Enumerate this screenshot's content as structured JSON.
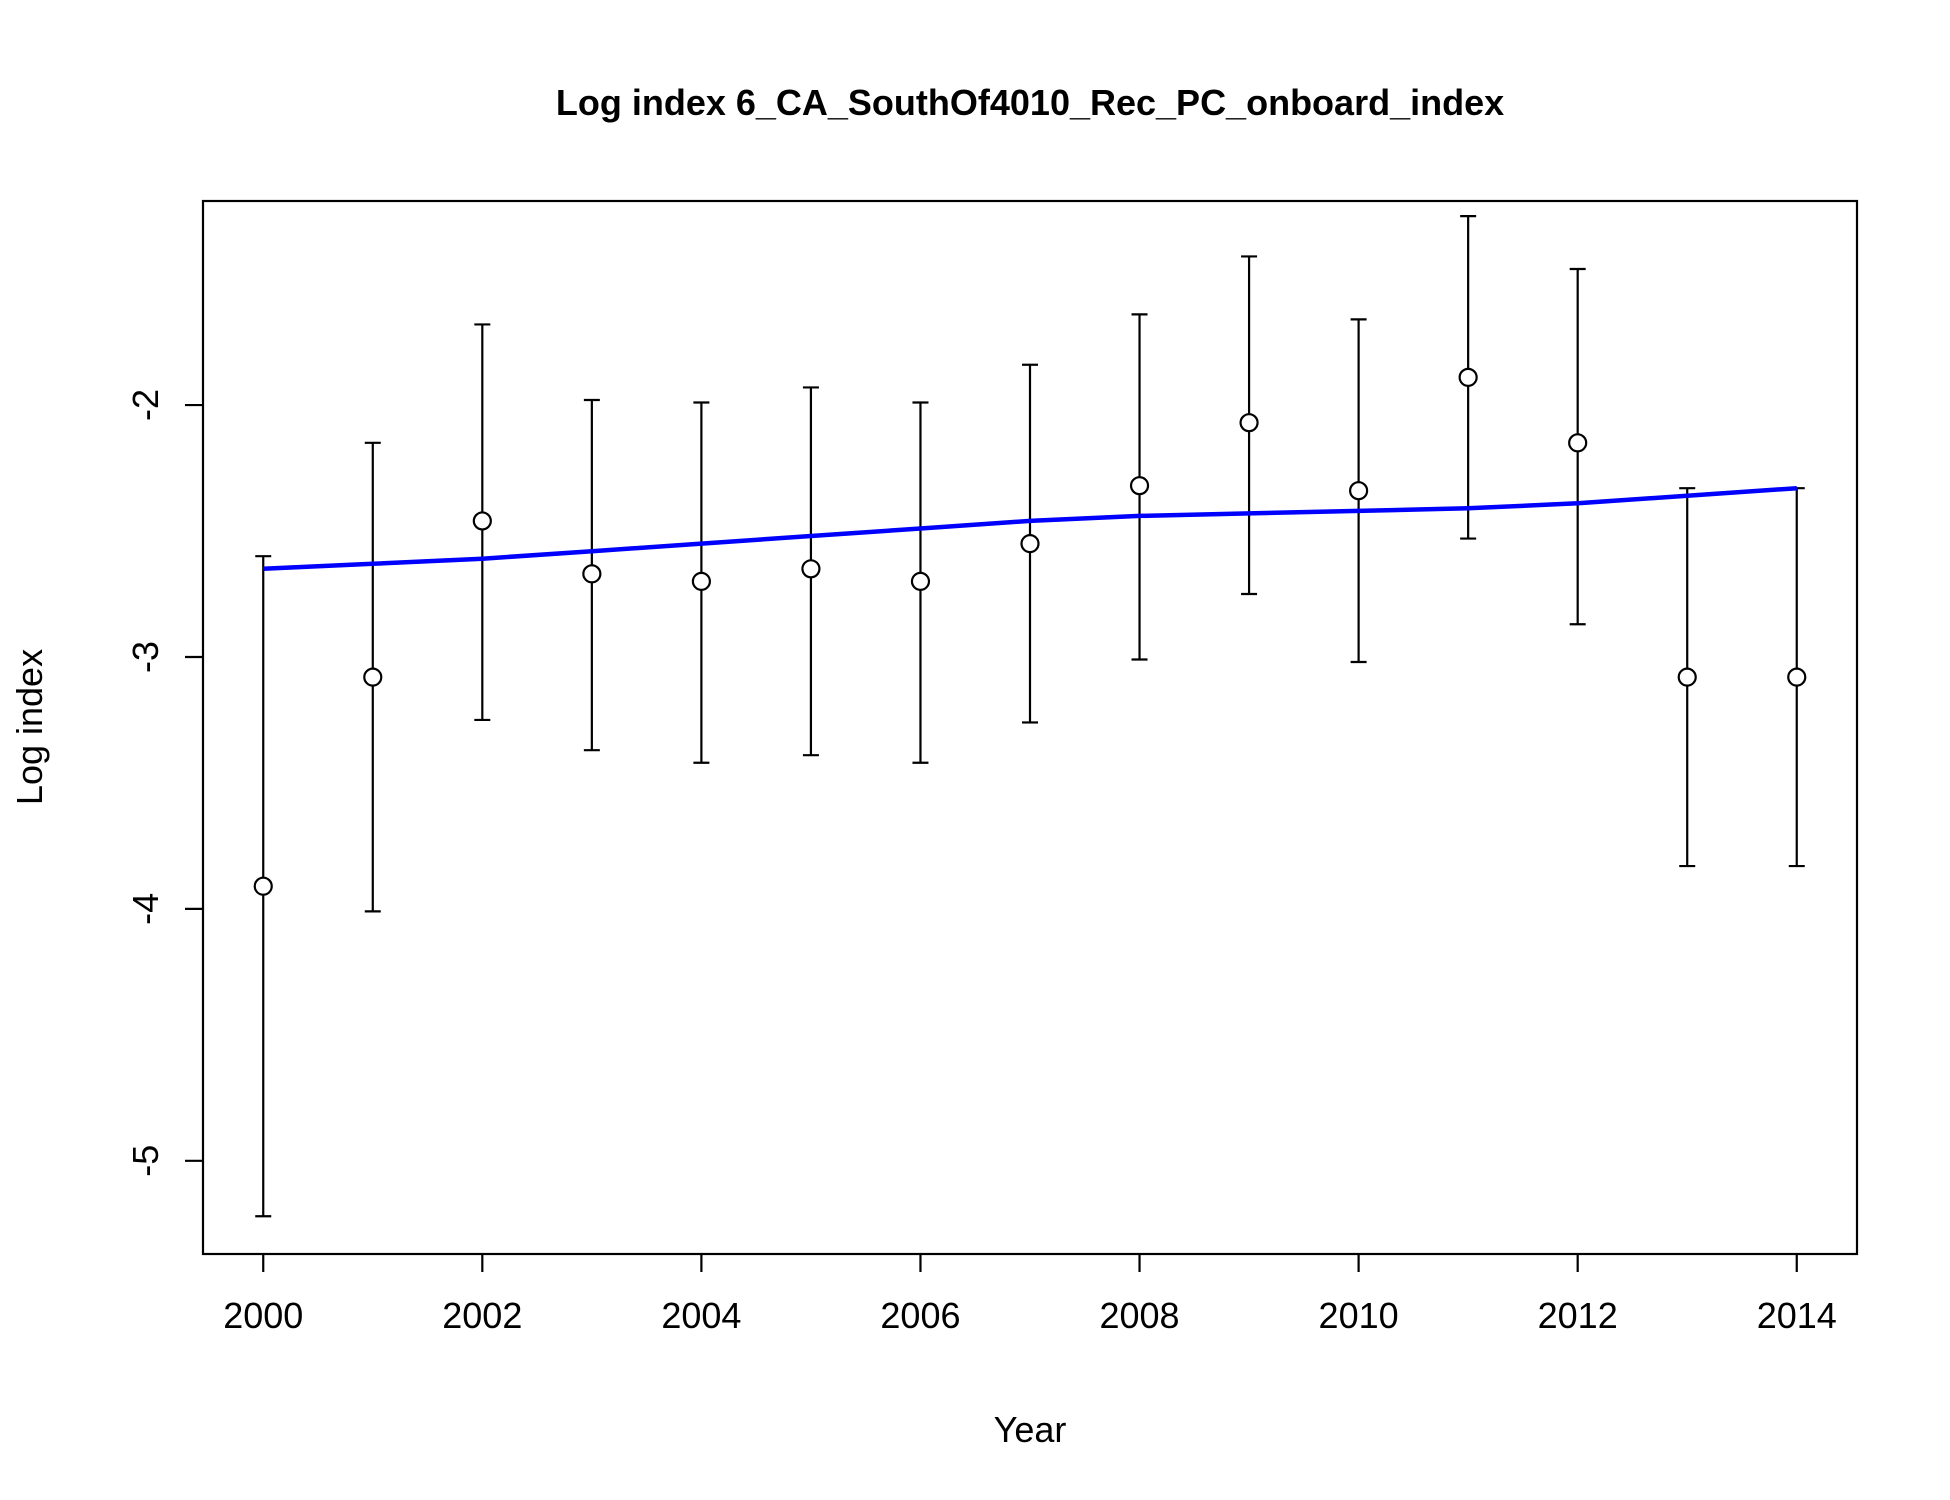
{
  "chart_data": {
    "type": "scatter",
    "title": "Log index 6_CA_SouthOf4010_Rec_PC_onboard_index",
    "xlabel": "Year",
    "ylabel": "Log index",
    "xlim": [
      1999.45,
      2014.55
    ],
    "ylim": [
      -5.37,
      -1.19
    ],
    "xticks": [
      2000,
      2002,
      2004,
      2006,
      2008,
      2010,
      2012,
      2014
    ],
    "xtick_labels": [
      "2000",
      "2002",
      "2004",
      "2006",
      "2008",
      "2010",
      "2012",
      "2014"
    ],
    "yticks": [
      -5,
      -4,
      -3,
      -2
    ],
    "ytick_labels": [
      "-5",
      "-4",
      "-3",
      "-2"
    ],
    "grid": false,
    "series": [
      {
        "type": "scatter-errorbar",
        "color": "#000000",
        "x": [
          2000,
          2001,
          2002,
          2003,
          2004,
          2005,
          2006,
          2007,
          2008,
          2009,
          2010,
          2011,
          2012,
          2013,
          2014
        ],
        "y": [
          -3.91,
          -3.08,
          -2.46,
          -2.67,
          -2.7,
          -2.65,
          -2.7,
          -2.55,
          -2.32,
          -2.07,
          -2.34,
          -1.89,
          -2.15,
          -3.08,
          -3.08
        ],
        "lower": [
          -5.22,
          -4.01,
          -3.25,
          -3.37,
          -3.42,
          -3.39,
          -3.42,
          -3.26,
          -3.01,
          -2.75,
          -3.02,
          -2.53,
          -2.87,
          -3.83,
          -3.83
        ],
        "upper": [
          -2.6,
          -2.15,
          -1.68,
          -1.98,
          -1.99,
          -1.93,
          -1.99,
          -1.84,
          -1.64,
          -1.41,
          -1.66,
          -1.25,
          -1.46,
          -2.33,
          -2.33
        ]
      },
      {
        "type": "line",
        "color": "#0000ff",
        "x": [
          2000,
          2001,
          2002,
          2003,
          2004,
          2005,
          2006,
          2007,
          2008,
          2009,
          2010,
          2011,
          2012,
          2013,
          2014
        ],
        "y": [
          -2.65,
          -2.63,
          -2.61,
          -2.58,
          -2.55,
          -2.52,
          -2.49,
          -2.46,
          -2.44,
          -2.43,
          -2.42,
          -2.41,
          -2.39,
          -2.36,
          -2.33
        ]
      }
    ]
  }
}
